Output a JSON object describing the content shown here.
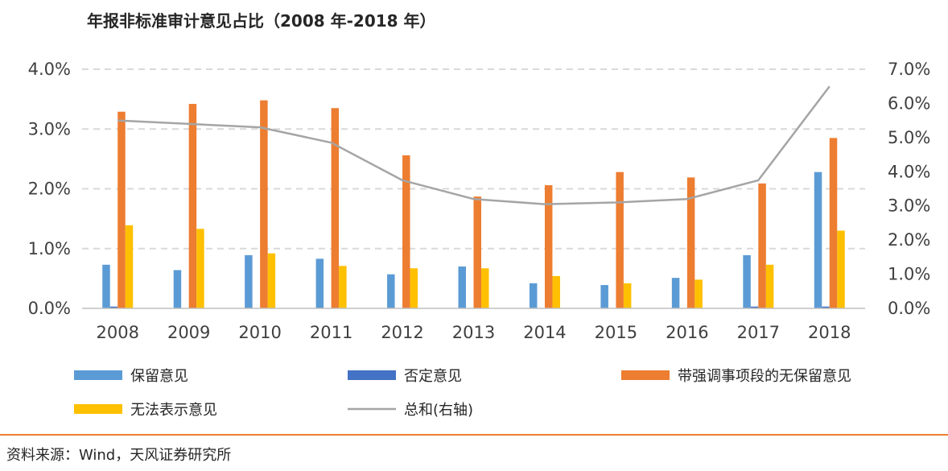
{
  "title": "年报非标准审计意见占比（2008 年-2018 年）",
  "source": "资料来源：Wind，天风证券研究所",
  "chart_data": {
    "type": "bar",
    "categories": [
      "2008",
      "2009",
      "2010",
      "2011",
      "2012",
      "2013",
      "2014",
      "2015",
      "2016",
      "2017",
      "2018"
    ],
    "left_ticks": [
      "0.0%",
      "1.0%",
      "2.0%",
      "3.0%",
      "4.0%"
    ],
    "right_ticks": [
      "0.0%",
      "1.0%",
      "2.0%",
      "3.0%",
      "4.0%",
      "5.0%",
      "6.0%",
      "7.0%"
    ],
    "ylim": [
      0,
      4.0
    ],
    "y2lim": [
      0,
      7.0
    ],
    "grid": true,
    "legend_position": "bottom",
    "series": [
      {
        "name": "保留意见",
        "type": "bar",
        "axis": "left",
        "color": "#5B9BD5",
        "values": [
          0.73,
          0.64,
          0.89,
          0.83,
          0.57,
          0.7,
          0.42,
          0.39,
          0.51,
          0.89,
          2.28
        ]
      },
      {
        "name": "否定意见",
        "type": "bar",
        "axis": "left",
        "color": "#4472C4",
        "values": [
          0.03,
          0,
          0,
          0,
          0,
          0,
          0,
          0,
          0,
          0.03,
          0.03
        ]
      },
      {
        "name": "带强调事项段的无保留意见",
        "type": "bar",
        "axis": "left",
        "color": "#ED7D31",
        "values": [
          3.29,
          3.42,
          3.48,
          3.35,
          2.56,
          1.87,
          2.06,
          2.28,
          2.19,
          2.09,
          2.85
        ]
      },
      {
        "name": "无法表示意见",
        "type": "bar",
        "axis": "left",
        "color": "#FFC000",
        "values": [
          1.39,
          1.33,
          0.92,
          0.71,
          0.67,
          0.67,
          0.54,
          0.42,
          0.48,
          0.73,
          1.3
        ]
      },
      {
        "name": "总和(右轴)",
        "type": "line",
        "axis": "right",
        "color": "#A5A5A5",
        "values": [
          5.5,
          5.4,
          5.3,
          4.85,
          3.75,
          3.2,
          3.05,
          3.1,
          3.2,
          3.75,
          6.5
        ]
      }
    ]
  }
}
